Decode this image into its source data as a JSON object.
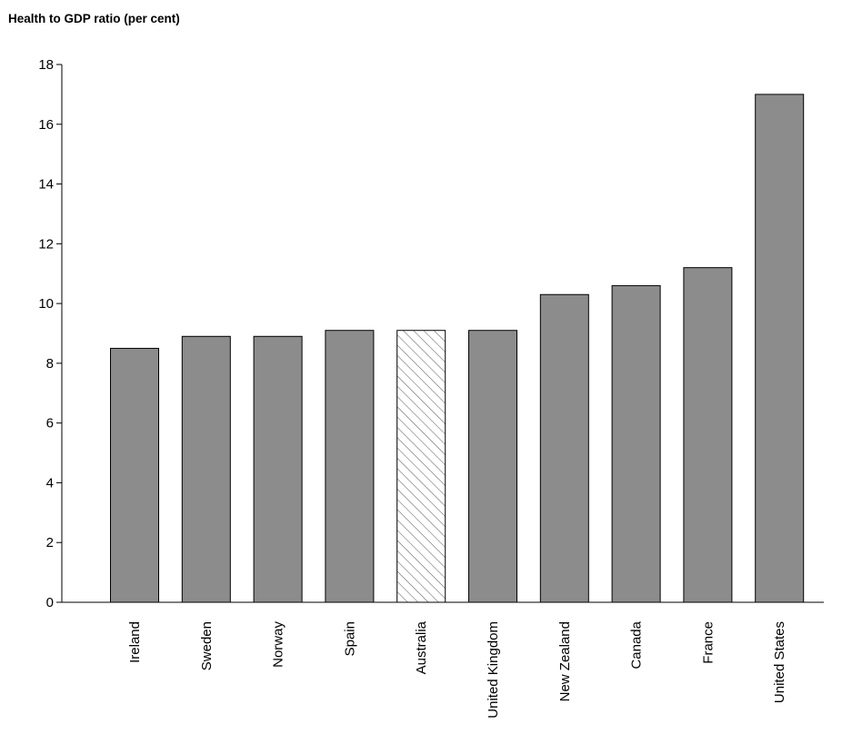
{
  "chart_data": {
    "type": "bar",
    "title": "Health to GDP ratio (per cent)",
    "xlabel": "",
    "ylabel": "",
    "ylim": [
      0,
      18
    ],
    "yticks": [
      0,
      2,
      4,
      6,
      8,
      10,
      12,
      14,
      16,
      18
    ],
    "grid": false,
    "categories": [
      "Ireland",
      "Sweden",
      "Norway",
      "Spain",
      "Australia",
      "United Kingdom",
      "New Zealand",
      "Canada",
      "France",
      "United States"
    ],
    "values": [
      8.5,
      8.9,
      8.9,
      9.1,
      9.1,
      9.1,
      10.3,
      10.6,
      11.2,
      17.0
    ],
    "highlight": "Australia",
    "colors": {
      "bar": "#8c8c8c",
      "highlight_fill": "#ffffff",
      "hatch": "#555555",
      "outline": "#000000"
    }
  }
}
